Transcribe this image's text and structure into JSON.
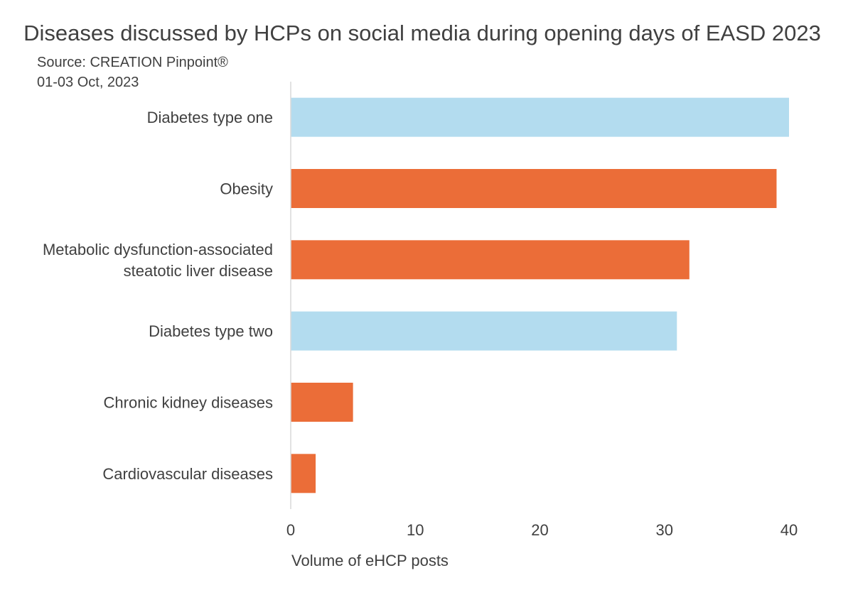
{
  "chart_data": {
    "type": "bar",
    "orientation": "horizontal",
    "title": "Diseases discussed by HCPs on social media during opening days of EASD 2023",
    "subtitle_lines": [
      "Source: CREATION Pinpoint®",
      "01-03 Oct, 2023"
    ],
    "xlabel": "Volume of eHCP posts",
    "ylabel": "",
    "xlim": [
      0,
      40
    ],
    "x_ticks": [
      0,
      10,
      20,
      30,
      40
    ],
    "grid": false,
    "legend": "none",
    "categories": [
      [
        "Diabetes type one"
      ],
      [
        "Obesity"
      ],
      [
        "Metabolic dysfunction-associated",
        "steatotic liver disease"
      ],
      [
        "Diabetes type two"
      ],
      [
        "Chronic kidney diseases"
      ],
      [
        "Cardiovascular diseases"
      ]
    ],
    "values": [
      40,
      39,
      32,
      31,
      5,
      2
    ],
    "bar_colors": [
      "#b3dcef",
      "#eb6d38",
      "#eb6d38",
      "#b3dcef",
      "#eb6d38",
      "#eb6d38"
    ]
  },
  "colors": {
    "text": "#404040",
    "axis": "#d9d9d9",
    "light_blue": "#b3dcef",
    "orange": "#eb6d38"
  }
}
